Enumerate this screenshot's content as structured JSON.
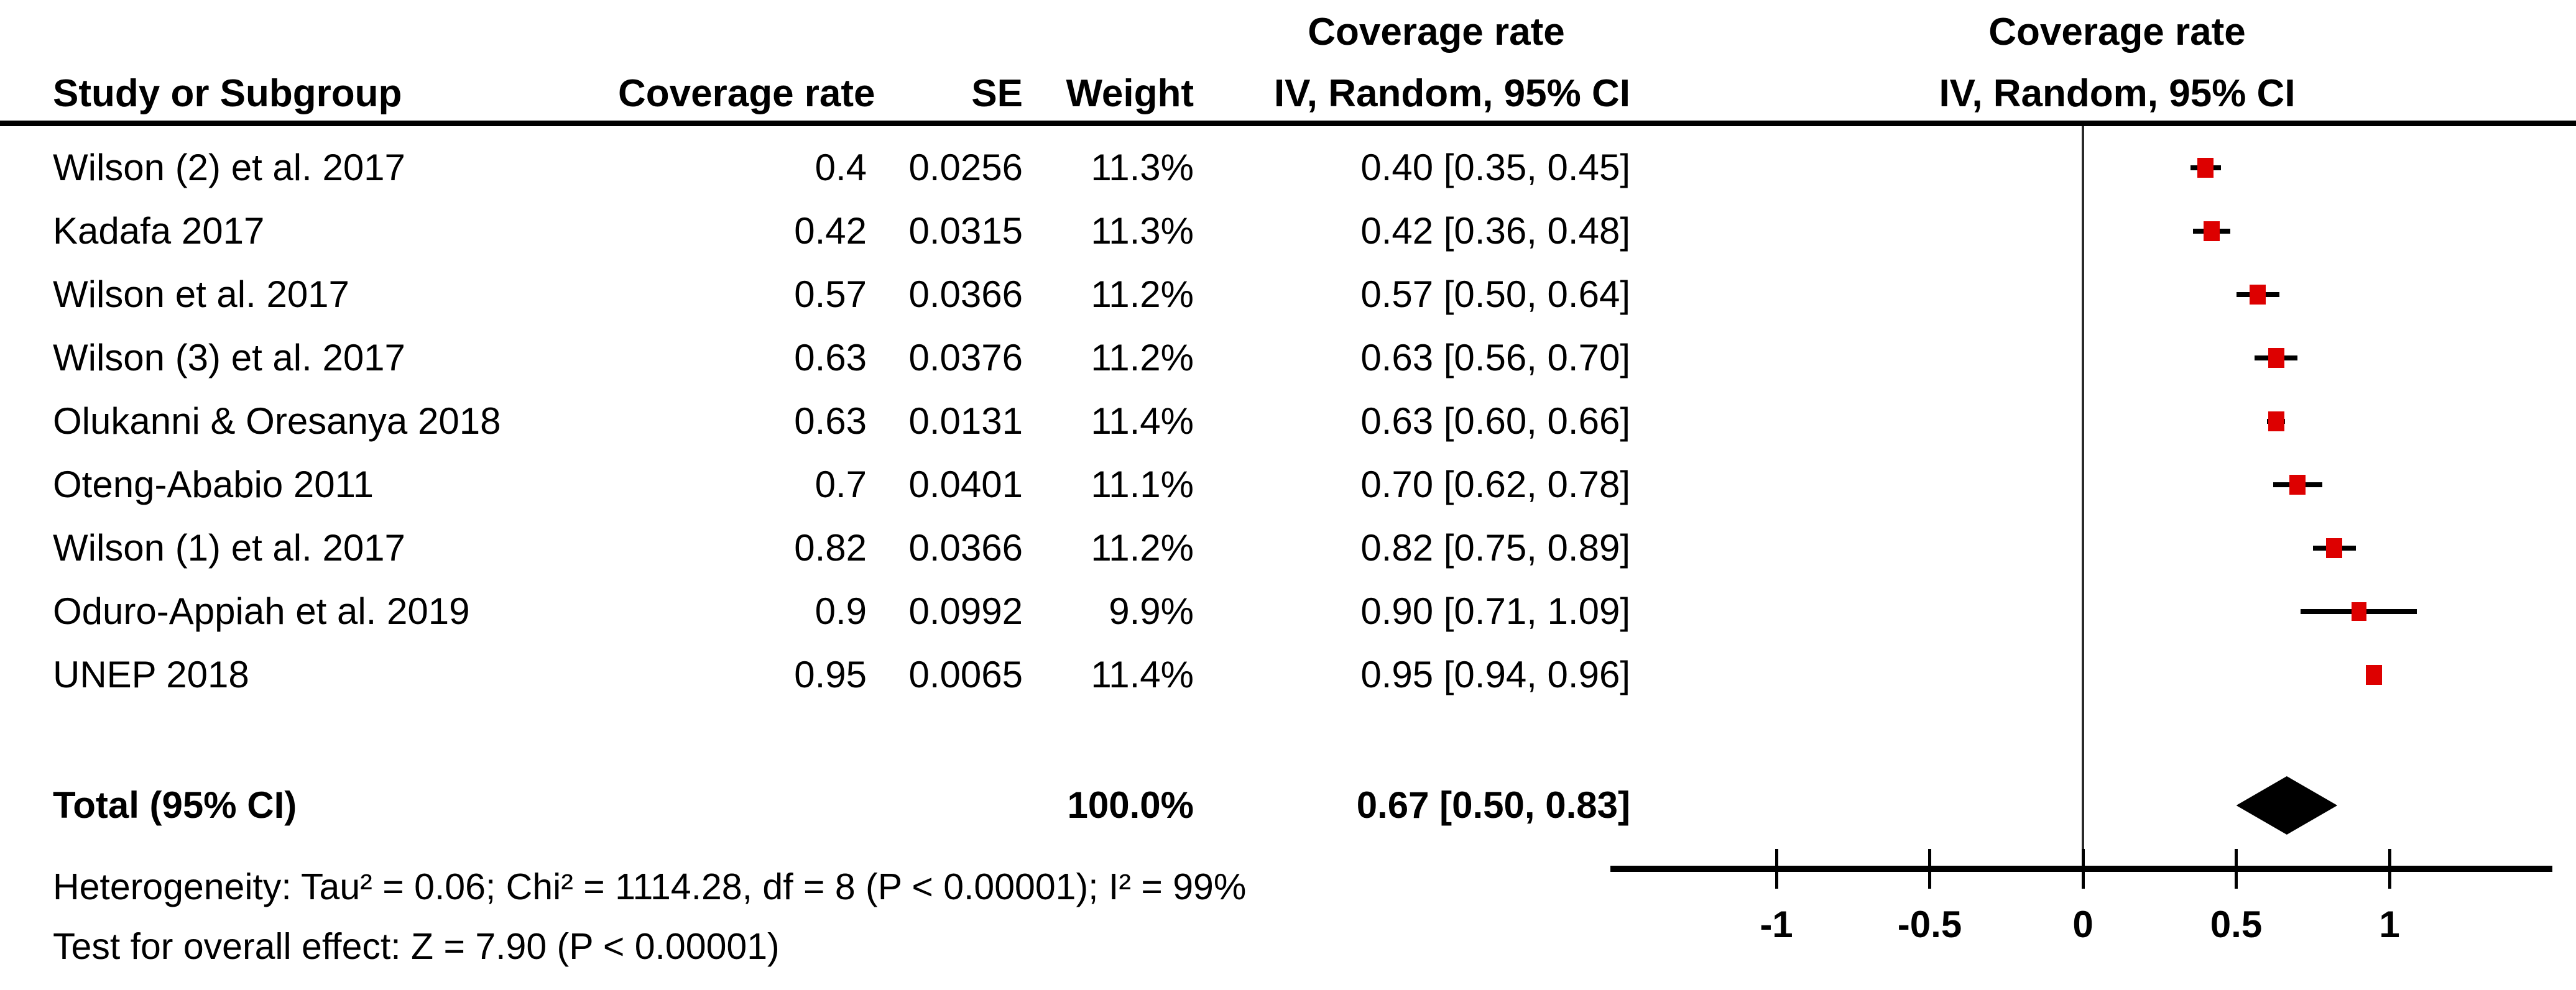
{
  "header": {
    "study": "Study or Subgroup",
    "effect": "Coverage rate",
    "se": "SE",
    "weight": "Weight",
    "ci_group": "Coverage rate",
    "ci": "IV, Random, 95% CI"
  },
  "plot_header": {
    "group": "Coverage rate",
    "ci": "IV, Random, 95% CI"
  },
  "totals": {
    "label": "Total (95% CI)",
    "weight": "100.0%",
    "ci": "0.67 [0.50, 0.83]"
  },
  "footnotes": {
    "heterogeneity": "Heterogeneity: Tau² = 0.06; Chi² = 1114.28, df = 8 (P < 0.00001); I² = 99%",
    "overall_effect": "Test for overall effect: Z = 7.90 (P < 0.00001)"
  },
  "chart_data": {
    "type": "forest",
    "effect_measure": "Coverage rate",
    "model": "IV, Random, 95% CI",
    "studies": [
      {
        "name": "Wilson (2) et al. 2017",
        "effect": "0.4",
        "se": "0.0256",
        "weight": "11.3%",
        "ci": "0.40 [0.35, 0.45]",
        "est": 0.4,
        "lo": 0.35,
        "hi": 0.45,
        "weight_pct": 11.3
      },
      {
        "name": "Kadafa 2017",
        "effect": "0.42",
        "se": "0.0315",
        "weight": "11.3%",
        "ci": "0.42 [0.36, 0.48]",
        "est": 0.42,
        "lo": 0.36,
        "hi": 0.48,
        "weight_pct": 11.3
      },
      {
        "name": "Wilson et al. 2017",
        "effect": "0.57",
        "se": "0.0366",
        "weight": "11.2%",
        "ci": "0.57 [0.50, 0.64]",
        "est": 0.57,
        "lo": 0.5,
        "hi": 0.64,
        "weight_pct": 11.2
      },
      {
        "name": "Wilson (3) et al. 2017",
        "effect": "0.63",
        "se": "0.0376",
        "weight": "11.2%",
        "ci": "0.63 [0.56, 0.70]",
        "est": 0.63,
        "lo": 0.56,
        "hi": 0.7,
        "weight_pct": 11.2
      },
      {
        "name": "Olukanni & Oresanya 2018",
        "effect": "0.63",
        "se": "0.0131",
        "weight": "11.4%",
        "ci": "0.63 [0.60, 0.66]",
        "est": 0.63,
        "lo": 0.6,
        "hi": 0.66,
        "weight_pct": 11.4
      },
      {
        "name": "Oteng-Ababio 2011",
        "effect": "0.7",
        "se": "0.0401",
        "weight": "11.1%",
        "ci": "0.70 [0.62, 0.78]",
        "est": 0.7,
        "lo": 0.62,
        "hi": 0.78,
        "weight_pct": 11.1
      },
      {
        "name": "Wilson (1) et al. 2017",
        "effect": "0.82",
        "se": "0.0366",
        "weight": "11.2%",
        "ci": "0.82 [0.75, 0.89]",
        "est": 0.82,
        "lo": 0.75,
        "hi": 0.89,
        "weight_pct": 11.2
      },
      {
        "name": "Oduro-Appiah et al. 2019",
        "effect": "0.9",
        "se": "0.0992",
        "weight": "9.9%",
        "ci": "0.90 [0.71, 1.09]",
        "est": 0.9,
        "lo": 0.71,
        "hi": 1.09,
        "weight_pct": 9.9
      },
      {
        "name": "UNEP 2018",
        "effect": "0.95",
        "se": "0.0065",
        "weight": "11.4%",
        "ci": "0.95 [0.94, 0.96]",
        "est": 0.95,
        "lo": 0.94,
        "hi": 0.96,
        "weight_pct": 11.4
      }
    ],
    "total": {
      "est": 0.67,
      "lo": 0.5,
      "hi": 0.83
    },
    "axis": {
      "tick_values": [
        -1,
        -0.5,
        0,
        0.5,
        1
      ],
      "tick_labels": [
        "-1",
        "-0.5",
        "0",
        "0.5",
        "1"
      ],
      "range": [
        -1.55,
        1.53
      ],
      "grid": false,
      "zero_reference_line": true
    },
    "colors": {
      "marker": "#dd0000",
      "line": "#000000",
      "diamond": "#000000"
    }
  }
}
